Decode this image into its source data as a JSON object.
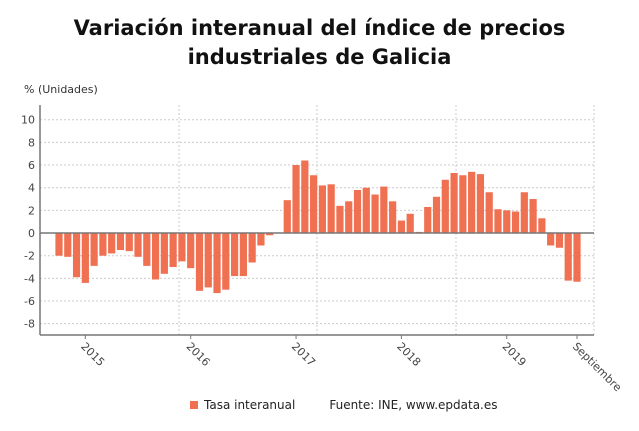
{
  "chart_data": {
    "type": "bar",
    "title": "Variación interanual del índice de precios industriales de Galicia",
    "ylabel": "% (Unidades)",
    "xlabel": "",
    "ylim": [
      -9,
      11.3
    ],
    "yticks": [
      10,
      8,
      6,
      4,
      2,
      0,
      -2,
      -4,
      -6,
      -8
    ],
    "grid": true,
    "legend_position": "bottom",
    "xtick_labels": [
      {
        "label": "2015",
        "category": "2015-01"
      },
      {
        "label": "2016",
        "category": "2016-01"
      },
      {
        "label": "2017",
        "category": "2017-01"
      },
      {
        "label": "2018",
        "category": "2018-01"
      },
      {
        "label": "2019",
        "category": "2019-01"
      },
      {
        "label": "Septiembre",
        "category": "2019-09"
      }
    ],
    "categories": [
      "2014-10",
      "2014-11",
      "2014-12",
      "2015-01",
      "2015-02",
      "2015-03",
      "2015-04",
      "2015-05",
      "2015-06",
      "2015-07",
      "2015-08",
      "2015-09",
      "2015-10",
      "2015-11",
      "2015-12",
      "2016-01",
      "2016-02",
      "2016-03",
      "2016-04",
      "2016-05",
      "2016-06",
      "2016-07",
      "2016-08",
      "2016-09",
      "2016-10",
      "2016-11",
      "2016-12",
      "2017-01",
      "2017-02",
      "2017-03",
      "2017-04",
      "2017-05",
      "2017-06",
      "2017-07",
      "2017-08",
      "2017-09",
      "2017-10",
      "2017-11",
      "2017-12",
      "2018-01",
      "2018-02",
      "2018-03",
      "2018-04",
      "2018-05",
      "2018-06",
      "2018-07",
      "2018-08",
      "2018-09",
      "2018-10",
      "2018-11",
      "2018-12",
      "2019-01",
      "2019-02",
      "2019-03",
      "2019-04",
      "2019-05",
      "2019-06",
      "2019-07",
      "2019-08",
      "2019-09"
    ],
    "series": [
      {
        "name": "Tasa interanual",
        "color": "#f07052",
        "values": [
          -2.0,
          -2.1,
          -3.9,
          -4.4,
          -2.9,
          -2.0,
          -1.8,
          -1.5,
          -1.6,
          -2.1,
          -2.9,
          -4.1,
          -3.6,
          -3.0,
          -2.5,
          -3.1,
          -5.1,
          -4.8,
          -5.3,
          -5.0,
          -3.8,
          -3.8,
          -2.6,
          -1.1,
          -0.2,
          0.05,
          2.9,
          6.0,
          6.4,
          5.1,
          4.2,
          4.3,
          2.4,
          2.8,
          3.8,
          4.0,
          3.4,
          4.1,
          2.8,
          1.1,
          1.7,
          0.1,
          2.3,
          3.2,
          4.7,
          5.3,
          5.1,
          5.4,
          5.2,
          3.6,
          2.1,
          2.0,
          1.9,
          3.6,
          3.0,
          1.3,
          -1.1,
          -1.3,
          -4.2,
          -4.3
        ]
      }
    ],
    "source": "Fuente: INE, www.epdata.es"
  }
}
